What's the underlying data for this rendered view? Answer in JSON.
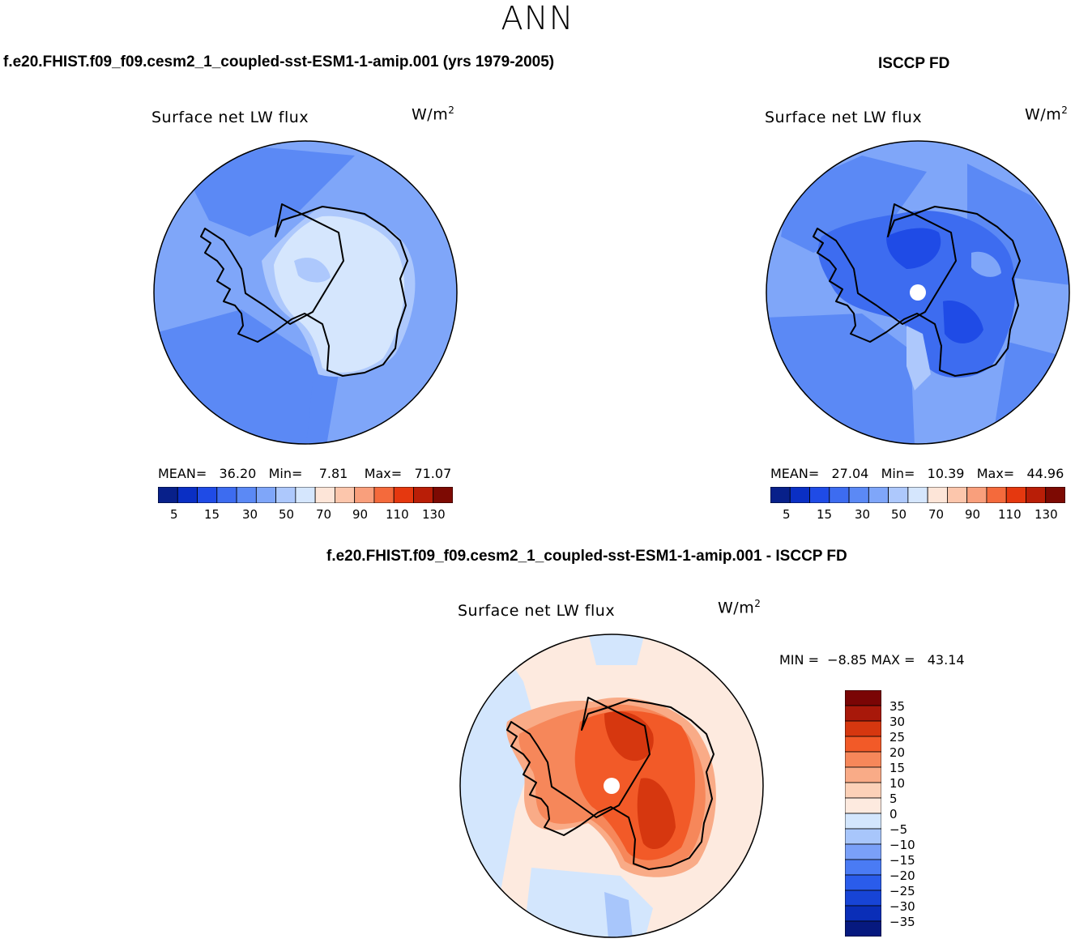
{
  "season": "ANN",
  "colors": {
    "coastline": "#000000",
    "pole_hole": "#ffffff",
    "abs_scale": [
      "#08208a",
      "#0a2fc4",
      "#1f4be6",
      "#3d6cf0",
      "#5b89f5",
      "#7fa6f9",
      "#adc8fc",
      "#d5e6fd",
      "#fde5d8",
      "#fcc6ac",
      "#f99f7c",
      "#f46a3c",
      "#e5380f",
      "#b91e07",
      "#7d0a03"
    ],
    "diff_scale": [
      "#06197f",
      "#0a2eb8",
      "#1744d6",
      "#2a5ceb",
      "#4a7bf4",
      "#7aa0f8",
      "#a8c6fb",
      "#d3e6fd",
      "#fdeadf",
      "#fcd1b8",
      "#f9ab87",
      "#f6875a",
      "#f25a28",
      "#d6370f",
      "#a8180a",
      "#7a0505"
    ]
  },
  "panels": [
    {
      "id": "test",
      "case_title": "f.e20.FHIST.f09_f09.cesm2_1_coupled-sst-ESM1-1-amip.001 (yrs 1979-2005)",
      "variable": "Surface net LW flux",
      "units": "W/m",
      "units_exp": "2",
      "stats": {
        "mean_label": "MEAN=",
        "mean": "36.20",
        "min_label": "Min=",
        "min": "7.81",
        "max_label": "Max=",
        "max": "71.07"
      },
      "colorbar_ticks": [
        "5",
        "15",
        "30",
        "50",
        "70",
        "90",
        "110",
        "130"
      ]
    },
    {
      "id": "obs",
      "case_title": "ISCCP FD",
      "variable": "Surface net LW flux",
      "units": "W/m",
      "units_exp": "2",
      "stats": {
        "mean_label": "MEAN=",
        "mean": "27.04",
        "min_label": "Min=",
        "min": "10.39",
        "max_label": "Max=",
        "max": "44.96"
      },
      "colorbar_ticks": [
        "5",
        "15",
        "30",
        "50",
        "70",
        "90",
        "110",
        "130"
      ]
    },
    {
      "id": "diff",
      "case_title": "f.e20.FHIST.f09_f09.cesm2_1_coupled-sst-ESM1-1-amip.001 - ISCCP FD",
      "variable": "Surface net LW flux",
      "units": "W/m",
      "units_exp": "2",
      "stats": {
        "min_label": "MIN =",
        "min": "−8.85",
        "max_label": "MAX =",
        "max": "43.14"
      },
      "colorbar_ticks": [
        "35",
        "30",
        "25",
        "20",
        "15",
        "10",
        "5",
        "0",
        "−5",
        "−10",
        "−15",
        "−20",
        "−25",
        "−30",
        "−35"
      ]
    }
  ]
}
